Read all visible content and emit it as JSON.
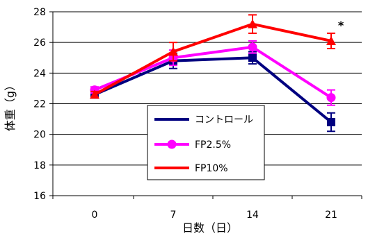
{
  "chart_data": {
    "type": "line",
    "x": [
      0,
      7,
      14,
      21
    ],
    "xlabel": "日数（日）",
    "ylabel": "体重（g）",
    "ylim": [
      16,
      28
    ],
    "yticks": [
      16,
      18,
      20,
      22,
      24,
      26,
      28
    ],
    "grid": true,
    "legend_position": "center-bottom",
    "annotation": "*",
    "series": [
      {
        "name": "コントロール",
        "values": [
          22.6,
          24.8,
          25.0,
          20.8
        ],
        "errors": [
          0.2,
          0.5,
          0.4,
          0.6
        ],
        "marker": "square",
        "color": "#000080"
      },
      {
        "name": "FP2.5%",
        "values": [
          22.9,
          25.0,
          25.7,
          22.4
        ],
        "errors": [
          0.2,
          0.5,
          0.4,
          0.5
        ],
        "marker": "circle",
        "color": "#ff00ff"
      },
      {
        "name": "FP10%",
        "values": [
          22.6,
          25.4,
          27.2,
          26.1
        ],
        "errors": [
          0.2,
          0.6,
          0.6,
          0.5
        ],
        "marker": "triangle",
        "color": "#ff0000"
      }
    ]
  }
}
